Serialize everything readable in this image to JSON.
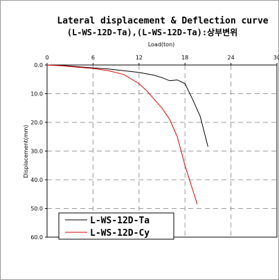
{
  "chart_data": {
    "type": "line",
    "title": "Lateral displacement & Deflection curve",
    "subtitle": "(L-WS-12D-Ta),(L-WS-12D-Ta):상부변위",
    "xlabel": "Load(ton)",
    "ylabel": "Displacement(mm)",
    "xlim": [
      0,
      30
    ],
    "ylim": [
      0,
      60
    ],
    "y_inverted": true,
    "x_axis_position": "top",
    "x_ticks": [
      "0",
      "6",
      "12",
      "18",
      "24",
      "30"
    ],
    "y_ticks": [
      "0.0",
      "10.0",
      "20.0",
      "30.0",
      "40.0",
      "50.0",
      "60.0"
    ],
    "grid": true,
    "legend_position": "bottom-left",
    "series": [
      {
        "name": "L-WS-12D-Ta",
        "color": "#000000",
        "points": [
          [
            0,
            0.0
          ],
          [
            2,
            0.2
          ],
          [
            4,
            0.6
          ],
          [
            6,
            1.0
          ],
          [
            8,
            1.4
          ],
          [
            10,
            2.0
          ],
          [
            12,
            2.6
          ],
          [
            14,
            3.6
          ],
          [
            15,
            4.4
          ],
          [
            16,
            5.5
          ],
          [
            17,
            5.2
          ],
          [
            18,
            6.5
          ],
          [
            19,
            12.0
          ],
          [
            20,
            18.0
          ],
          [
            21,
            28.5
          ]
        ]
      },
      {
        "name": "L-WS-12D-Cy",
        "color": "#e00000",
        "points": [
          [
            0,
            0.0
          ],
          [
            2,
            0.3
          ],
          [
            4,
            0.8
          ],
          [
            6,
            1.2
          ],
          [
            8,
            2.0
          ],
          [
            10,
            3.3
          ],
          [
            12,
            6.5
          ],
          [
            13,
            9.0
          ],
          [
            14,
            12.0
          ],
          [
            15,
            15.0
          ],
          [
            16,
            19.0
          ],
          [
            17,
            25.0
          ],
          [
            18,
            35.0
          ],
          [
            19,
            43.5
          ],
          [
            19.6,
            48.5
          ]
        ]
      }
    ]
  }
}
